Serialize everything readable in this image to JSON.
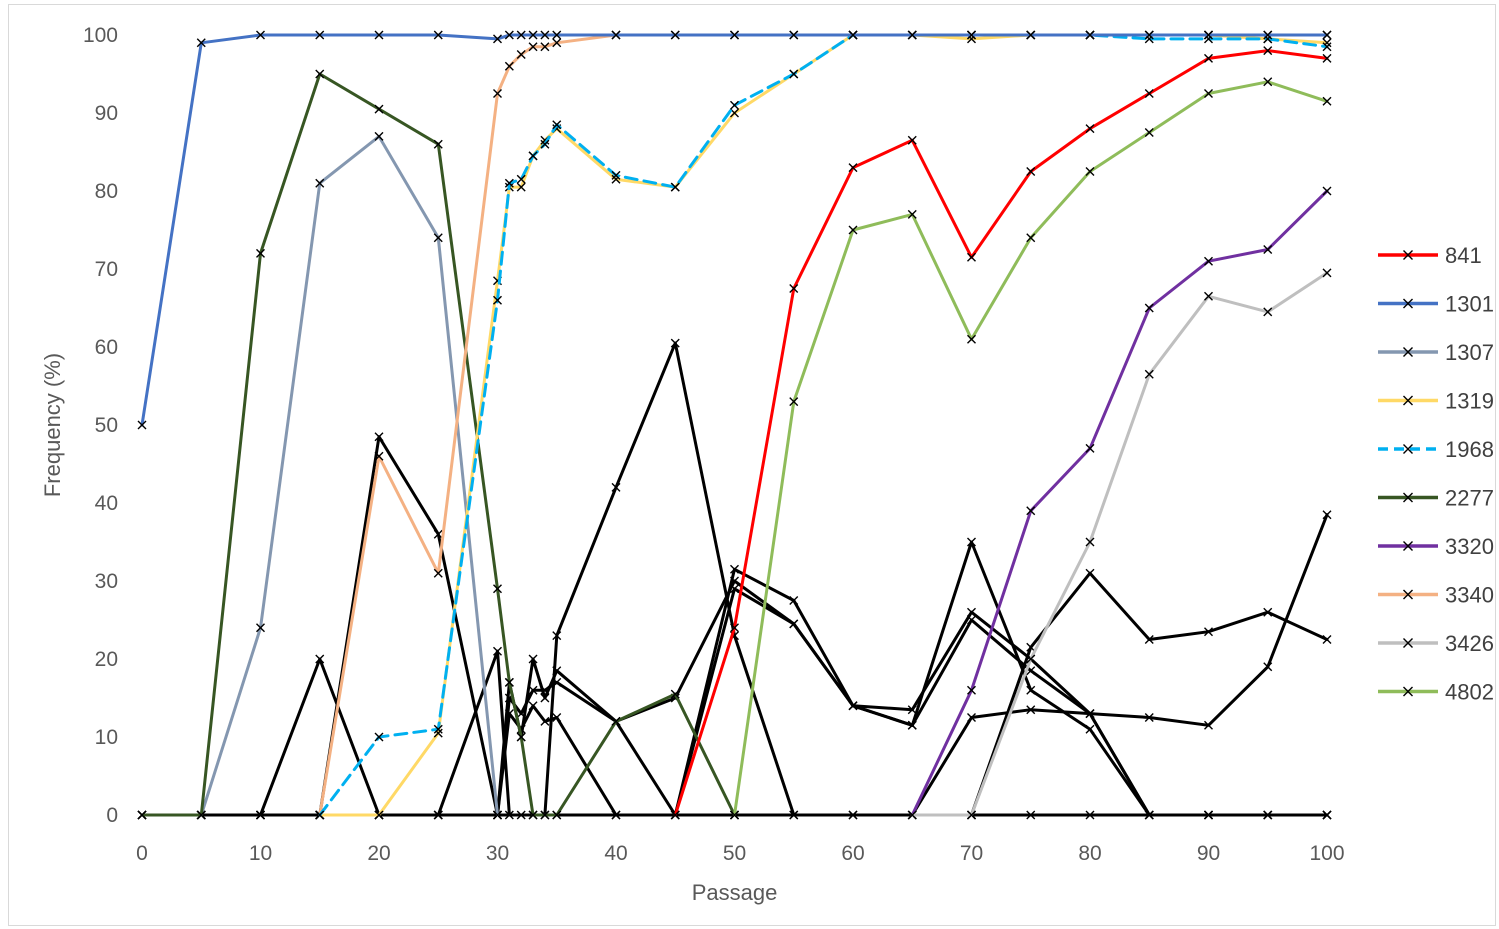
{
  "chart_data": {
    "type": "line",
    "title": "",
    "xlabel": "Passage",
    "ylabel": "Frequency (%)",
    "xlim": [
      0,
      100
    ],
    "ylim": [
      0,
      100
    ],
    "x_ticks": [
      0,
      10,
      20,
      30,
      40,
      50,
      60,
      70,
      80,
      90,
      100
    ],
    "y_ticks": [
      0,
      10,
      20,
      30,
      40,
      50,
      60,
      70,
      80,
      90,
      100
    ],
    "grid": false,
    "legend_position": "right",
    "marker": "x",
    "legend": [
      {
        "name": "841",
        "color": "#ff0000",
        "dashed": false
      },
      {
        "name": "1301",
        "color": "#4472c4",
        "dashed": false
      },
      {
        "name": "1307",
        "color": "#8497b0",
        "dashed": false
      },
      {
        "name": "1319",
        "color": "#ffd966",
        "dashed": false
      },
      {
        "name": "1968",
        "color": "#00b0f0",
        "dashed": true
      },
      {
        "name": "2277",
        "color": "#375623",
        "dashed": false
      },
      {
        "name": "3320",
        "color": "#7030a0",
        "dashed": false
      },
      {
        "name": "3340",
        "color": "#f4b183",
        "dashed": false
      },
      {
        "name": "3426",
        "color": "#bfbfbf",
        "dashed": false
      },
      {
        "name": "4802",
        "color": "#8fbc5a",
        "dashed": false
      }
    ],
    "series": [
      {
        "name": "",
        "color": "#000000",
        "dashed": false,
        "width": 3,
        "points": [
          [
            0,
            0
          ],
          [
            5,
            0
          ],
          [
            10,
            0
          ],
          [
            15,
            20
          ],
          [
            20,
            0
          ],
          [
            25,
            0
          ],
          [
            30,
            21
          ],
          [
            31,
            0
          ],
          [
            32,
            0
          ],
          [
            33,
            0
          ],
          [
            34,
            0
          ],
          [
            35,
            23
          ],
          [
            40,
            42
          ],
          [
            45,
            60.5
          ],
          [
            50,
            23
          ],
          [
            55,
            0
          ],
          [
            60,
            0
          ],
          [
            65,
            0
          ],
          [
            70,
            0
          ],
          [
            75,
            0
          ],
          [
            80,
            0
          ],
          [
            85,
            0
          ],
          [
            90,
            0
          ],
          [
            95,
            0
          ],
          [
            100,
            0
          ]
        ]
      },
      {
        "name": "",
        "color": "#000000",
        "dashed": false,
        "width": 3,
        "points": [
          [
            0,
            0
          ],
          [
            5,
            0
          ],
          [
            10,
            0
          ],
          [
            15,
            0
          ],
          [
            20,
            48.5
          ],
          [
            25,
            36
          ],
          [
            30,
            0
          ],
          [
            31,
            17
          ],
          [
            32,
            10
          ],
          [
            33,
            20
          ],
          [
            34,
            15
          ],
          [
            35,
            18.5
          ],
          [
            40,
            12
          ],
          [
            45,
            0
          ],
          [
            50,
            31.5
          ],
          [
            55,
            27.5
          ],
          [
            60,
            14
          ],
          [
            65,
            11.5
          ],
          [
            70,
            35
          ],
          [
            75,
            16
          ],
          [
            80,
            11
          ],
          [
            85,
            0
          ],
          [
            90,
            0
          ],
          [
            95,
            0
          ],
          [
            100,
            0
          ]
        ]
      },
      {
        "name": "",
        "color": "#000000",
        "dashed": false,
        "width": 3,
        "points": [
          [
            0,
            0
          ],
          [
            5,
            0
          ],
          [
            10,
            0
          ],
          [
            15,
            0
          ],
          [
            20,
            0
          ],
          [
            25,
            0
          ],
          [
            30,
            0
          ],
          [
            31,
            15
          ],
          [
            32,
            13
          ],
          [
            33,
            16
          ],
          [
            34,
            16
          ],
          [
            35,
            17
          ],
          [
            40,
            12
          ],
          [
            45,
            15
          ],
          [
            50,
            30
          ],
          [
            55,
            24.5
          ],
          [
            60,
            14
          ],
          [
            65,
            13.5
          ],
          [
            70,
            26
          ],
          [
            75,
            20
          ],
          [
            80,
            13
          ],
          [
            85,
            0
          ],
          [
            90,
            0
          ],
          [
            95,
            0
          ],
          [
            100,
            0
          ]
        ]
      },
      {
        "name": "",
        "color": "#000000",
        "dashed": false,
        "width": 3,
        "points": [
          [
            0,
            0
          ],
          [
            5,
            0
          ],
          [
            10,
            0
          ],
          [
            15,
            0
          ],
          [
            20,
            0
          ],
          [
            25,
            0
          ],
          [
            30,
            0
          ],
          [
            31,
            13
          ],
          [
            32,
            11
          ],
          [
            33,
            14
          ],
          [
            34,
            12
          ],
          [
            35,
            12.5
          ],
          [
            40,
            0
          ],
          [
            45,
            0
          ],
          [
            50,
            29
          ],
          [
            55,
            24.5
          ],
          [
            60,
            14
          ],
          [
            65,
            11.5
          ],
          [
            70,
            25
          ],
          [
            75,
            18.5
          ],
          [
            80,
            13
          ],
          [
            85,
            0
          ],
          [
            90,
            0
          ],
          [
            95,
            0
          ],
          [
            100,
            0
          ]
        ]
      },
      {
        "name": "",
        "color": "#000000",
        "dashed": false,
        "width": 3,
        "points": [
          [
            0,
            0
          ],
          [
            5,
            0
          ],
          [
            10,
            0
          ],
          [
            15,
            0
          ],
          [
            20,
            0
          ],
          [
            25,
            0
          ],
          [
            30,
            0
          ],
          [
            35,
            0
          ],
          [
            40,
            0
          ],
          [
            45,
            0
          ],
          [
            50,
            0
          ],
          [
            55,
            0
          ],
          [
            60,
            0
          ],
          [
            65,
            0
          ],
          [
            70,
            12.5
          ],
          [
            75,
            13.5
          ],
          [
            80,
            13
          ],
          [
            85,
            12.5
          ],
          [
            90,
            11.5
          ],
          [
            95,
            19
          ],
          [
            100,
            38.5
          ]
        ]
      },
      {
        "name": "",
        "color": "#000000",
        "dashed": false,
        "width": 3,
        "points": [
          [
            70,
            0
          ],
          [
            75,
            21.5
          ],
          [
            80,
            31
          ],
          [
            85,
            22.5
          ],
          [
            90,
            23.5
          ],
          [
            95,
            26
          ],
          [
            100,
            22.5
          ]
        ]
      },
      {
        "name": "1307",
        "color": "#8497b0",
        "dashed": false,
        "width": 3,
        "points": [
          [
            0,
            0
          ],
          [
            5,
            0
          ],
          [
            10,
            24
          ],
          [
            15,
            81
          ],
          [
            20,
            87
          ],
          [
            25,
            74
          ],
          [
            30,
            0
          ]
        ]
      },
      {
        "name": "2277",
        "color": "#375623",
        "dashed": false,
        "width": 3,
        "points": [
          [
            0,
            0
          ],
          [
            5,
            0
          ],
          [
            10,
            72
          ],
          [
            15,
            95
          ],
          [
            20,
            90.5
          ],
          [
            25,
            86
          ],
          [
            30,
            29
          ],
          [
            31,
            17
          ],
          [
            32,
            10
          ],
          [
            33,
            0
          ],
          [
            34,
            0
          ],
          [
            35,
            0
          ],
          [
            40,
            12
          ],
          [
            45,
            15.5
          ],
          [
            50,
            0
          ]
        ]
      },
      {
        "name": "3340",
        "color": "#f4b183",
        "dashed": false,
        "width": 3,
        "points": [
          [
            15,
            0
          ],
          [
            20,
            46
          ],
          [
            25,
            31
          ],
          [
            30,
            92.5
          ],
          [
            31,
            96
          ],
          [
            32,
            97.5
          ],
          [
            33,
            98.5
          ],
          [
            34,
            98.5
          ],
          [
            35,
            99
          ],
          [
            40,
            100
          ],
          [
            45,
            100
          ],
          [
            50,
            100
          ],
          [
            55,
            100
          ],
          [
            60,
            100
          ],
          [
            65,
            100
          ],
          [
            70,
            100
          ],
          [
            75,
            100
          ],
          [
            80,
            100
          ],
          [
            85,
            100
          ],
          [
            90,
            100
          ],
          [
            95,
            100
          ],
          [
            100,
            100
          ]
        ]
      },
      {
        "name": "1319",
        "color": "#ffd966",
        "dashed": false,
        "width": 3,
        "points": [
          [
            15,
            0
          ],
          [
            20,
            0
          ],
          [
            25,
            10.5
          ],
          [
            30,
            68.5
          ],
          [
            31,
            80.5
          ],
          [
            32,
            80.5
          ],
          [
            33,
            84.5
          ],
          [
            34,
            86.5
          ],
          [
            35,
            88
          ],
          [
            40,
            81.5
          ],
          [
            45,
            80.5
          ],
          [
            50,
            90
          ],
          [
            55,
            95
          ],
          [
            60,
            100
          ],
          [
            65,
            100
          ],
          [
            70,
            99.5
          ],
          [
            75,
            100
          ],
          [
            80,
            100
          ],
          [
            85,
            100
          ],
          [
            90,
            100
          ],
          [
            95,
            99.5
          ],
          [
            100,
            99
          ]
        ]
      },
      {
        "name": "1968",
        "color": "#00b0f0",
        "dashed": true,
        "width": 3,
        "points": [
          [
            15,
            0
          ],
          [
            20,
            10
          ],
          [
            25,
            11
          ],
          [
            30,
            66
          ],
          [
            31,
            81
          ],
          [
            32,
            81.5
          ],
          [
            33,
            84.5
          ],
          [
            34,
            86
          ],
          [
            35,
            88.5
          ],
          [
            40,
            82
          ],
          [
            45,
            80.5
          ],
          [
            50,
            91
          ],
          [
            55,
            95
          ],
          [
            60,
            100
          ],
          [
            65,
            100
          ],
          [
            70,
            100
          ],
          [
            75,
            100
          ],
          [
            80,
            100
          ],
          [
            85,
            99.5
          ],
          [
            90,
            99.5
          ],
          [
            95,
            99.5
          ],
          [
            100,
            98.5
          ]
        ]
      },
      {
        "name": "1301",
        "color": "#4472c4",
        "dashed": false,
        "width": 3,
        "points": [
          [
            0,
            50
          ],
          [
            5,
            99
          ],
          [
            10,
            100
          ],
          [
            15,
            100
          ],
          [
            20,
            100
          ],
          [
            25,
            100
          ],
          [
            30,
            99.5
          ],
          [
            31,
            100
          ],
          [
            32,
            100
          ],
          [
            33,
            100
          ],
          [
            34,
            100
          ],
          [
            35,
            100
          ],
          [
            40,
            100
          ],
          [
            45,
            100
          ],
          [
            50,
            100
          ],
          [
            55,
            100
          ],
          [
            60,
            100
          ],
          [
            65,
            100
          ],
          [
            70,
            100
          ],
          [
            75,
            100
          ],
          [
            80,
            100
          ],
          [
            85,
            100
          ],
          [
            90,
            100
          ],
          [
            95,
            100
          ],
          [
            100,
            100
          ]
        ]
      },
      {
        "name": "841",
        "color": "#ff0000",
        "dashed": false,
        "width": 3,
        "points": [
          [
            45,
            0
          ],
          [
            50,
            24
          ],
          [
            55,
            67.5
          ],
          [
            60,
            83
          ],
          [
            65,
            86.5
          ],
          [
            70,
            71.5
          ],
          [
            75,
            82.5
          ],
          [
            80,
            88
          ],
          [
            85,
            92.5
          ],
          [
            90,
            97
          ],
          [
            95,
            98
          ],
          [
            100,
            97
          ]
        ]
      },
      {
        "name": "4802",
        "color": "#8fbc5a",
        "dashed": false,
        "width": 3,
        "points": [
          [
            50,
            0
          ],
          [
            55,
            53
          ],
          [
            60,
            75
          ],
          [
            65,
            77
          ],
          [
            70,
            61
          ],
          [
            75,
            74
          ],
          [
            80,
            82.5
          ],
          [
            85,
            87.5
          ],
          [
            90,
            92.5
          ],
          [
            95,
            94
          ],
          [
            100,
            91.5
          ]
        ]
      },
      {
        "name": "3320",
        "color": "#7030a0",
        "dashed": false,
        "width": 3,
        "points": [
          [
            65,
            0
          ],
          [
            70,
            16
          ],
          [
            75,
            39
          ],
          [
            80,
            47
          ],
          [
            85,
            65
          ],
          [
            90,
            71
          ],
          [
            95,
            72.5
          ],
          [
            100,
            80
          ]
        ]
      },
      {
        "name": "3426",
        "color": "#bfbfbf",
        "dashed": false,
        "width": 3,
        "points": [
          [
            65,
            0
          ],
          [
            70,
            0
          ],
          [
            75,
            20
          ],
          [
            80,
            35
          ],
          [
            85,
            56.5
          ],
          [
            90,
            66.5
          ],
          [
            95,
            64.5
          ],
          [
            100,
            69.5
          ]
        ]
      }
    ]
  }
}
